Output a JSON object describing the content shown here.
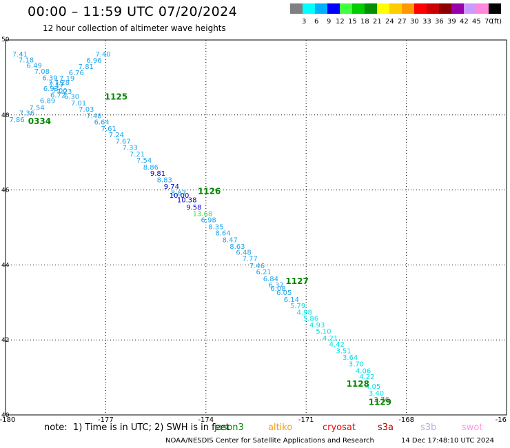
{
  "header": {
    "title": "00:00 – 11:59 UTC 07/20/2024",
    "subtitle": "12 hour collection of altimeter wave heights"
  },
  "legend": {
    "colors": [
      "#808080",
      "#00ffff",
      "#00b0ff",
      "#0000ff",
      "#40ff40",
      "#00cc00",
      "#009000",
      "#ffff00",
      "#ffcc00",
      "#ff9900",
      "#ff0000",
      "#cc0000",
      "#8b0000",
      "#9900aa",
      "#cc99ff",
      "#ff88dd",
      "#000000"
    ],
    "labels": [
      "3",
      "6",
      "9",
      "12",
      "15",
      "18",
      "21",
      "24",
      "27",
      "30",
      "33",
      "36",
      "39",
      "42",
      "45",
      "70",
      "(ft)"
    ]
  },
  "chart_data": {
    "type": "scatter",
    "xlim": [
      -180,
      -165
    ],
    "ylim": [
      40,
      50
    ],
    "x_ticks": [
      "-180",
      "-177",
      "-174",
      "-171",
      "-168",
      "-16"
    ],
    "y_ticks": [
      "50",
      "48",
      "46",
      "44",
      "42",
      "40"
    ],
    "grid": true,
    "points": [
      {
        "lon": -179.57,
        "lat": 49.63,
        "v": "7.41"
      },
      {
        "lon": -179.38,
        "lat": 49.48,
        "v": "7.18"
      },
      {
        "lon": -179.14,
        "lat": 49.33,
        "v": "6.49"
      },
      {
        "lon": -178.91,
        "lat": 49.17,
        "v": "7.08"
      },
      {
        "lon": -178.67,
        "lat": 49.0,
        "v": "6.39"
      },
      {
        "lon": -178.49,
        "lat": 48.86,
        "v": "7.15"
      },
      {
        "lon": -178.24,
        "lat": 48.64,
        "v": "7.23"
      },
      {
        "lon": -178.43,
        "lat": 48.54,
        "v": "6.72"
      },
      {
        "lon": -178.74,
        "lat": 48.39,
        "v": "6.89"
      },
      {
        "lon": -179.06,
        "lat": 48.21,
        "v": "7.54"
      },
      {
        "lon": -179.36,
        "lat": 48.06,
        "v": "7.36"
      },
      {
        "lon": -179.66,
        "lat": 47.89,
        "v": "7.86"
      },
      {
        "lon": -177.08,
        "lat": 49.63,
        "v": "7.40"
      },
      {
        "lon": -177.35,
        "lat": 49.47,
        "v": "6.96"
      },
      {
        "lon": -177.59,
        "lat": 49.3,
        "v": "7.81"
      },
      {
        "lon": -177.88,
        "lat": 49.14,
        "v": "6.76"
      },
      {
        "lon": -178.16,
        "lat": 48.99,
        "v": "7.19"
      },
      {
        "lon": -178.31,
        "lat": 48.88,
        "v": "7.28"
      },
      {
        "lon": -178.47,
        "lat": 48.81,
        "v": "7.17"
      },
      {
        "lon": -178.64,
        "lat": 48.71,
        "v": "6.93"
      },
      {
        "lon": -178.38,
        "lat": 48.66,
        "v": "7.00"
      },
      {
        "lon": -178.02,
        "lat": 48.5,
        "v": "6.30"
      },
      {
        "lon": -177.81,
        "lat": 48.33,
        "v": "7.01"
      },
      {
        "lon": -177.58,
        "lat": 48.16,
        "v": "7.03"
      },
      {
        "lon": -177.35,
        "lat": 47.99,
        "v": "7.48"
      },
      {
        "lon": -177.12,
        "lat": 47.82,
        "v": "6.64"
      },
      {
        "lon": -176.91,
        "lat": 47.65,
        "v": "7.61"
      },
      {
        "lon": -176.68,
        "lat": 47.48,
        "v": "7.24"
      },
      {
        "lon": -176.48,
        "lat": 47.31,
        "v": "7.67"
      },
      {
        "lon": -176.27,
        "lat": 47.14,
        "v": "7.33"
      },
      {
        "lon": -176.06,
        "lat": 46.97,
        "v": "7.21"
      },
      {
        "lon": -175.85,
        "lat": 46.8,
        "v": "7.54"
      },
      {
        "lon": -175.65,
        "lat": 46.62,
        "v": "8.86"
      },
      {
        "lon": -175.44,
        "lat": 46.45,
        "v": "9.81"
      },
      {
        "lon": -175.24,
        "lat": 46.28,
        "v": "8.83"
      },
      {
        "lon": -175.03,
        "lat": 46.1,
        "v": "9.74"
      },
      {
        "lon": -174.82,
        "lat": 45.93,
        "v": "8.87"
      },
      {
        "lon": -174.8,
        "lat": 45.86,
        "v": "10.00"
      },
      {
        "lon": -174.57,
        "lat": 45.74,
        "v": "10.38"
      },
      {
        "lon": -174.36,
        "lat": 45.55,
        "v": "9.58"
      },
      {
        "lon": -174.1,
        "lat": 45.38,
        "v": "13.68"
      },
      {
        "lon": -173.92,
        "lat": 45.21,
        "v": "6.98"
      },
      {
        "lon": -173.7,
        "lat": 45.03,
        "v": "8.35"
      },
      {
        "lon": -173.49,
        "lat": 44.86,
        "v": "8.64"
      },
      {
        "lon": -173.28,
        "lat": 44.68,
        "v": "8.47"
      },
      {
        "lon": -173.06,
        "lat": 44.5,
        "v": "8.63"
      },
      {
        "lon": -172.87,
        "lat": 44.35,
        "v": "6.48"
      },
      {
        "lon": -172.68,
        "lat": 44.18,
        "v": "7.77"
      },
      {
        "lon": -172.47,
        "lat": 43.99,
        "v": "7.46"
      },
      {
        "lon": -172.27,
        "lat": 43.82,
        "v": "6.21"
      },
      {
        "lon": -172.06,
        "lat": 43.64,
        "v": "6.84"
      },
      {
        "lon": -171.9,
        "lat": 43.47,
        "v": "6.37"
      },
      {
        "lon": -171.84,
        "lat": 43.38,
        "v": "6.08"
      },
      {
        "lon": -171.66,
        "lat": 43.27,
        "v": "6.05"
      },
      {
        "lon": -171.44,
        "lat": 43.09,
        "v": "6.14"
      },
      {
        "lon": -171.25,
        "lat": 42.92,
        "v": "5.79"
      },
      {
        "lon": -171.05,
        "lat": 42.75,
        "v": "4.98"
      },
      {
        "lon": -170.86,
        "lat": 42.58,
        "v": "5.86"
      },
      {
        "lon": -170.67,
        "lat": 42.41,
        "v": "4.93"
      },
      {
        "lon": -170.48,
        "lat": 42.24,
        "v": "5.10"
      },
      {
        "lon": -170.28,
        "lat": 42.06,
        "v": "4.21"
      },
      {
        "lon": -170.08,
        "lat": 41.89,
        "v": "4.42"
      },
      {
        "lon": -169.88,
        "lat": 41.72,
        "v": "3.51"
      },
      {
        "lon": -169.68,
        "lat": 41.54,
        "v": "3.64"
      },
      {
        "lon": -169.5,
        "lat": 41.37,
        "v": "3.70"
      },
      {
        "lon": -169.29,
        "lat": 41.19,
        "v": "4.06"
      },
      {
        "lon": -169.18,
        "lat": 41.03,
        "v": "4.22"
      },
      {
        "lon": -169.0,
        "lat": 40.77,
        "v": "4.05"
      },
      {
        "lon": -168.9,
        "lat": 40.59,
        "v": "3.40"
      },
      {
        "lon": -168.74,
        "lat": 40.42,
        "v": "2.76"
      }
    ],
    "pass_times": [
      {
        "label": "1125",
        "lon": -176.69,
        "lat": 48.5
      },
      {
        "label": "0334",
        "lon": -178.98,
        "lat": 47.85
      },
      {
        "label": "1126",
        "lon": -173.9,
        "lat": 45.98
      },
      {
        "label": "1127",
        "lon": -171.27,
        "lat": 43.58
      },
      {
        "label": "1128",
        "lon": -169.45,
        "lat": 40.85
      },
      {
        "label": "1129",
        "lon": -168.79,
        "lat": 40.36
      }
    ]
  },
  "footer": {
    "note": "note:  1) Time is in UTC; 2) SWH is in feet",
    "satellites": [
      {
        "name": "jason3",
        "color": "#008800"
      },
      {
        "name": "altiko",
        "color": "#ff9900"
      },
      {
        "name": "cryosat",
        "color": "#ff0000"
      },
      {
        "name": "s3a",
        "color": "#aa0000"
      },
      {
        "name": "s3b",
        "color": "#bbaaee"
      },
      {
        "name": "swot",
        "color": "#ff99dd"
      }
    ],
    "credit": "NOAA/NESDIS Center for Satellite Applications and Research",
    "timestamp": "14 Dec 17:48:10 UTC 2024"
  }
}
